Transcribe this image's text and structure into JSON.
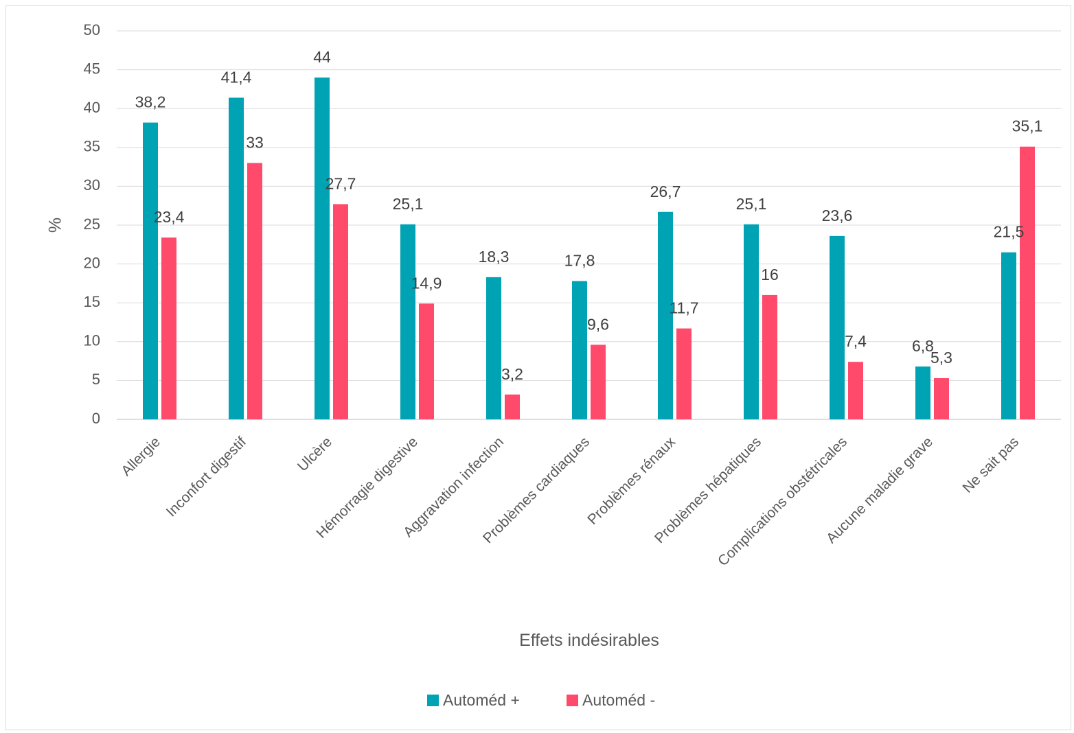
{
  "chart_data": {
    "type": "bar",
    "xlabel": "Effets indésirables",
    "ylabel": "%",
    "ylim": [
      0,
      50
    ],
    "ytick_step": 5,
    "grid": true,
    "legend_position": "bottom",
    "categories": [
      "Allergie",
      "Inconfort digestif",
      "Ulcère",
      "Hémorragie digestive",
      "Aggravation infection",
      "Problèmes cardiaques",
      "Problèmes rénaux",
      "Problèmes hépatiques",
      "Complications obstétricales",
      "Aucune maladie grave",
      "Ne sait pas"
    ],
    "series": [
      {
        "name": "Automéd +",
        "color": "#00A3B4",
        "values": [
          38.2,
          41.4,
          44,
          25.1,
          18.3,
          17.8,
          26.7,
          25.1,
          23.6,
          6.8,
          21.5
        ],
        "labels": [
          "38,2",
          "41,4",
          "44",
          "25,1",
          "18,3",
          "17,8",
          "26,7",
          "25,1",
          "23,6",
          "6,8",
          "21,5"
        ]
      },
      {
        "name": "Automéd -",
        "color": "#FF4A6B",
        "values": [
          23.4,
          33,
          27.7,
          14.9,
          3.2,
          9.6,
          11.7,
          16,
          7.4,
          5.3,
          35.1
        ],
        "labels": [
          "23,4",
          "33",
          "27,7",
          "14,9",
          "3,2",
          "9,6",
          "11,7",
          "16",
          "7,4",
          "5,3",
          "35,1"
        ]
      }
    ]
  }
}
